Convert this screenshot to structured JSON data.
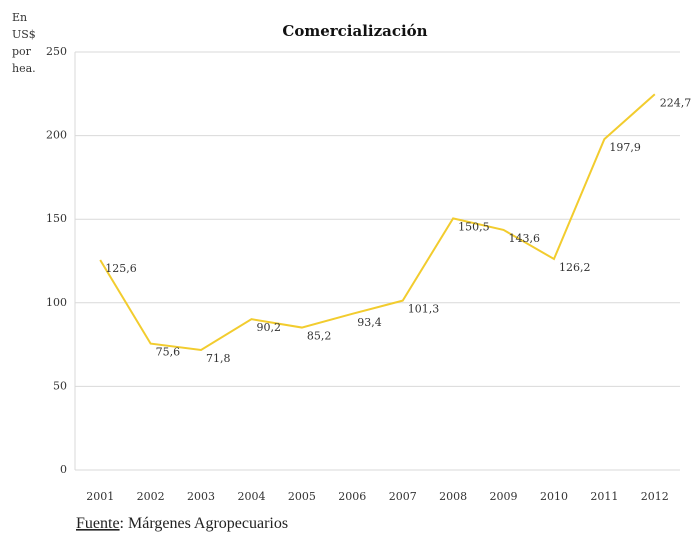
{
  "chart_data": {
    "type": "line",
    "title": "Comercialización",
    "y_axis_label": [
      "En",
      "US$",
      "por",
      "hea."
    ],
    "categories": [
      "2001",
      "2002",
      "2003",
      "2004",
      "2005",
      "2006",
      "2007",
      "2008",
      "2009",
      "2010",
      "2011",
      "2012"
    ],
    "series": [
      {
        "name": "Comercialización",
        "color": "#f2cc2e",
        "values": [
          125.6,
          75.6,
          71.8,
          90.2,
          85.2,
          93.4,
          101.3,
          150.5,
          143.6,
          126.2,
          197.9,
          224.7
        ],
        "value_labels": [
          "125,6",
          "75,6",
          "71,8",
          "90,2",
          "85,2",
          "93,4",
          "101,3",
          "150,5",
          "143,6",
          "126,2",
          "197,9",
          "224,7"
        ]
      }
    ],
    "ylim": [
      0,
      250
    ],
    "yticks": [
      0,
      50,
      100,
      150,
      200,
      250
    ],
    "grid": true,
    "source_label": "Fuente",
    "source_text": ": Márgenes Agropecuarios"
  }
}
